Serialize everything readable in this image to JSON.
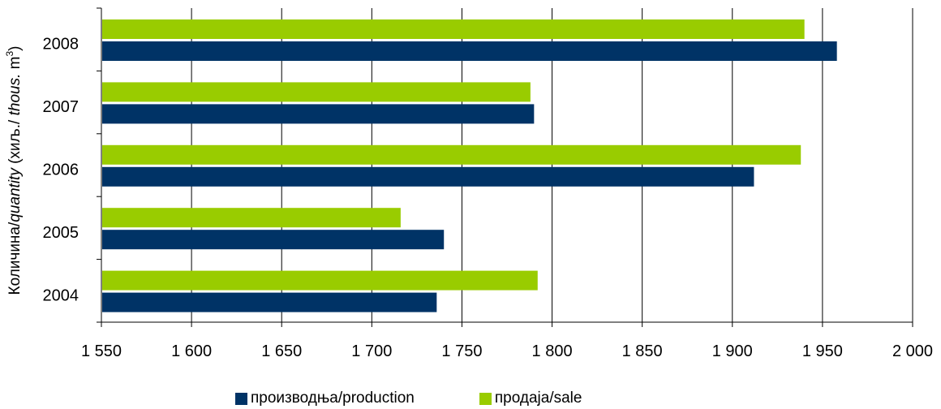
{
  "chart_data": {
    "type": "bar",
    "orientation": "horizontal",
    "categories": [
      "2004",
      "2005",
      "2006",
      "2007",
      "2008"
    ],
    "series": [
      {
        "name": "производња/production",
        "color": "#003366",
        "values": [
          1736,
          1740,
          1912,
          1790,
          1958
        ]
      },
      {
        "name": "продаја/sale",
        "color": "#99cc00",
        "values": [
          1792,
          1716,
          1938,
          1788,
          1940
        ]
      }
    ],
    "xlim": [
      1550,
      2000
    ],
    "xticks": [
      1550,
      1600,
      1650,
      1700,
      1750,
      1800,
      1850,
      1900,
      1950,
      2000
    ],
    "xtick_labels": [
      "1 550",
      "1 600",
      "1 650",
      "1 700",
      "1 750",
      "1 800",
      "1 850",
      "1 900",
      "1 950",
      "2 000"
    ],
    "ylabel": {
      "prefix": "Количина/",
      "italic": "quantity",
      "middle": " (хиљ./ ",
      "italic2": "thous.",
      "suffix": " m",
      "sup": "3",
      "close": ")"
    },
    "grid": "vertical",
    "legend": "bottom"
  }
}
